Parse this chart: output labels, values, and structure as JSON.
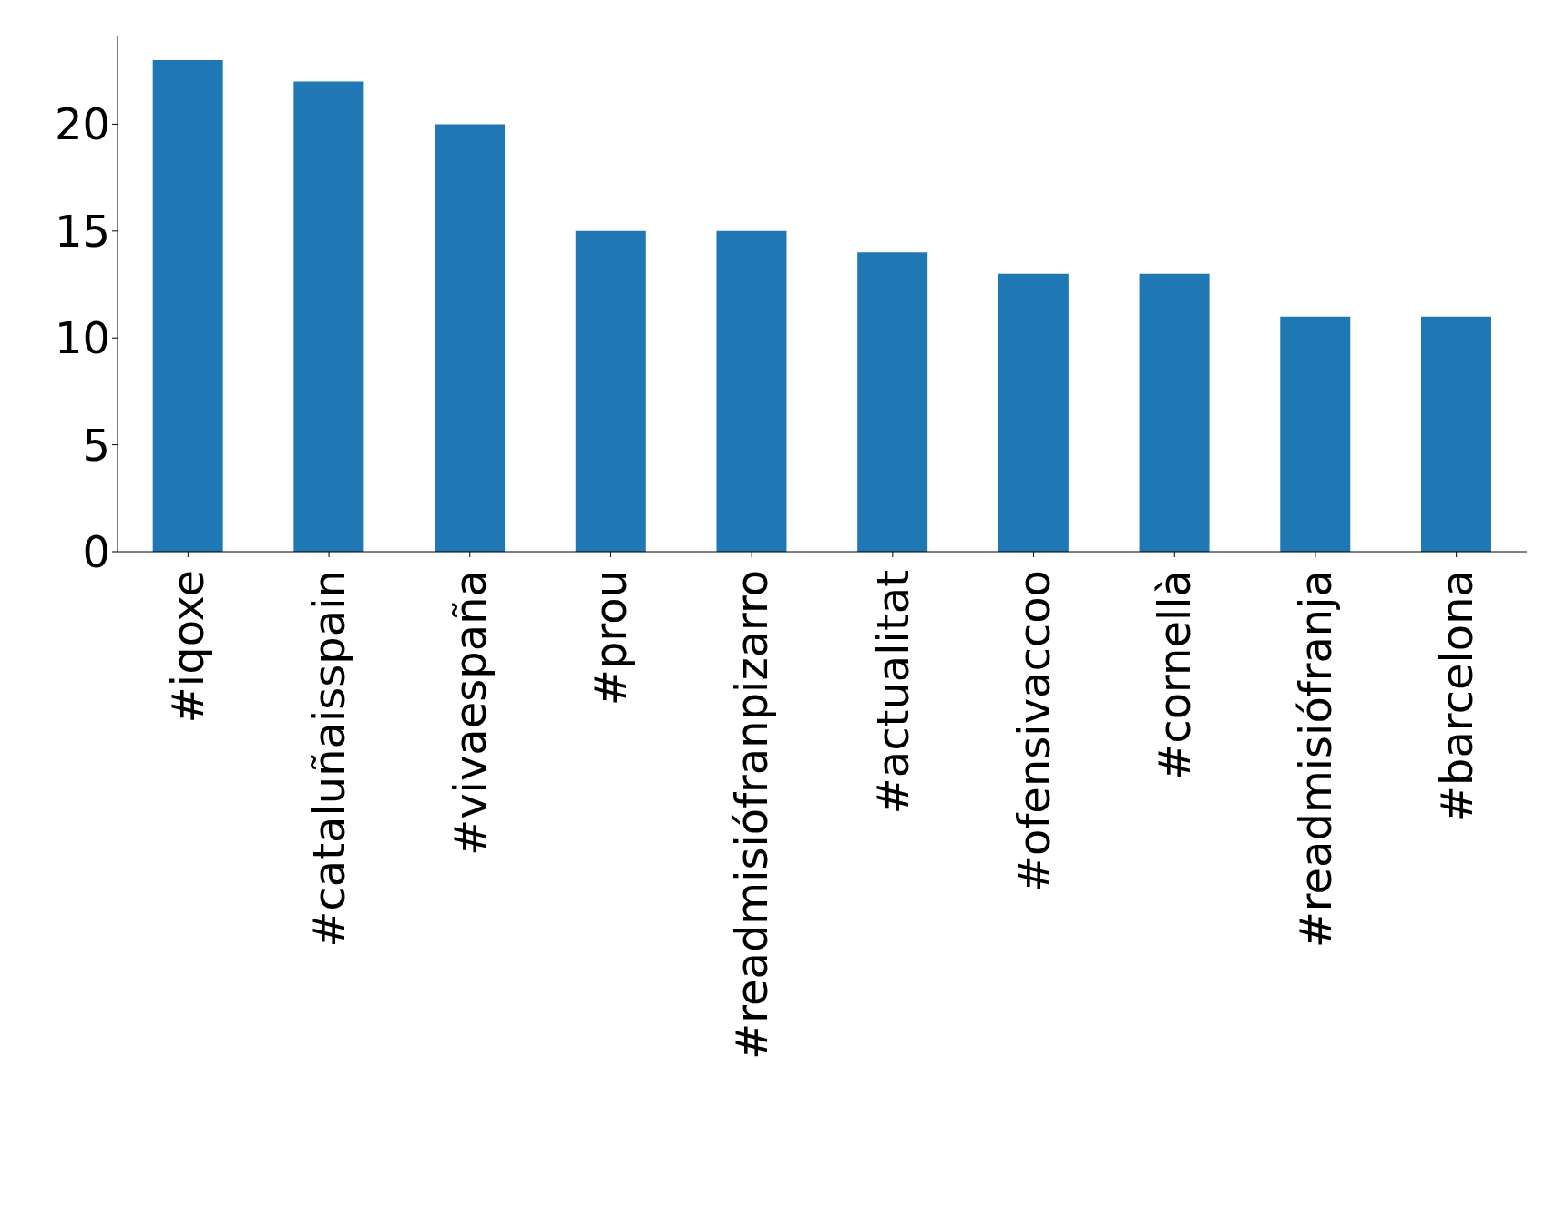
{
  "chart_data": {
    "type": "bar",
    "categories": [
      "#iqoxe",
      "#cataluñaisspain",
      "#vivaespaña",
      "#prou",
      "#readmisiófranpizarro",
      "#actualitat",
      "#ofensivaccoo",
      "#cornellà",
      "#readmisiófranja",
      "#barcelona"
    ],
    "values": [
      23,
      22,
      20,
      15,
      15,
      14,
      13,
      13,
      11,
      11
    ],
    "color": "#1f77b4",
    "ylim": [
      0,
      24.15
    ],
    "yticks": [
      0,
      5,
      10,
      15,
      20
    ]
  }
}
